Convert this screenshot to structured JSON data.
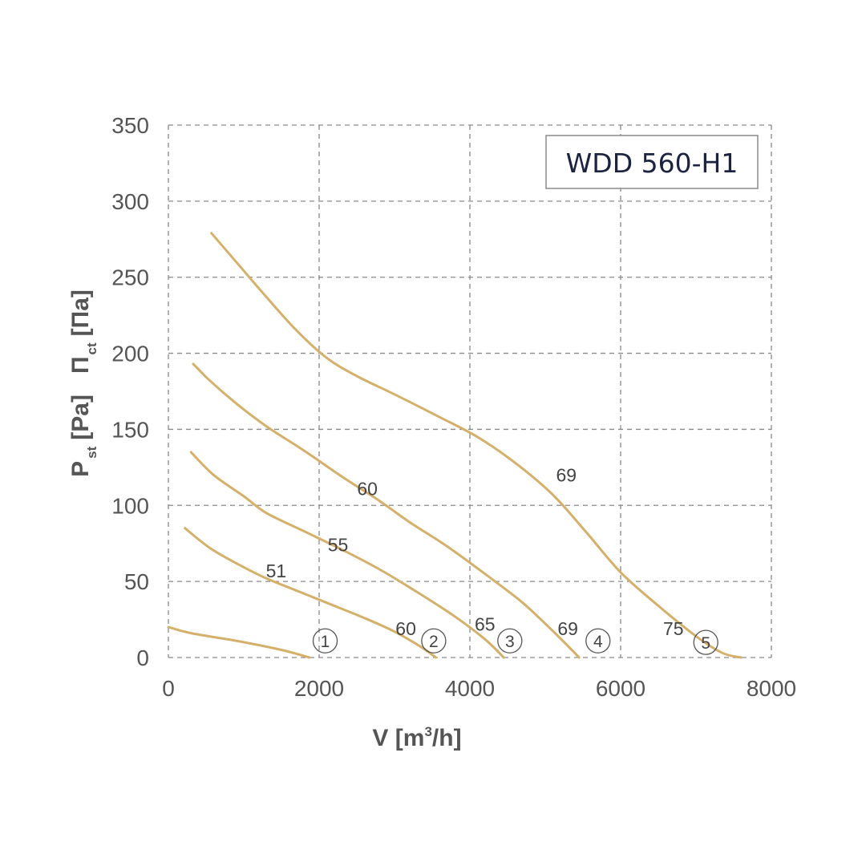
{
  "chart_data": {
    "type": "line",
    "title": "WDD 560-H1",
    "xlabel": {
      "main": "V [m",
      "sup": "3",
      "end": "/h]"
    },
    "ylabel": {
      "p1": "P",
      "p1_sub": "st",
      "p1_unit": "[Pa]",
      "p2": "П",
      "p2_sub": "ct",
      "p2_unit": "[Па]"
    },
    "xlim": [
      0,
      8000
    ],
    "ylim": [
      0,
      350
    ],
    "xticks": [
      0,
      2000,
      4000,
      6000,
      8000
    ],
    "yticks": [
      0,
      50,
      100,
      150,
      200,
      250,
      300,
      350
    ],
    "xtick_labels": [
      "0",
      "2000",
      "4000",
      "6000",
      "8000"
    ],
    "ytick_labels": [
      "0",
      "50",
      "100",
      "150",
      "200",
      "250",
      "300",
      "350"
    ],
    "grid": true,
    "line_color": "#d4b06a",
    "series": [
      {
        "marker": "①",
        "values": [
          [
            0,
            20
          ],
          [
            300,
            16
          ],
          [
            900,
            11
          ],
          [
            1500,
            5
          ],
          [
            1870,
            0
          ]
        ]
      },
      {
        "marker": "②",
        "values": [
          [
            220,
            85
          ],
          [
            550,
            72
          ],
          [
            900,
            62
          ],
          [
            1300,
            52
          ],
          [
            1700,
            44
          ],
          [
            2100,
            36
          ],
          [
            2600,
            26
          ],
          [
            3000,
            17
          ],
          [
            3350,
            7
          ],
          [
            3550,
            0
          ]
        ]
      },
      {
        "marker": "③",
        "values": [
          [
            300,
            135
          ],
          [
            600,
            120
          ],
          [
            1000,
            106
          ],
          [
            1300,
            95
          ],
          [
            1800,
            83
          ],
          [
            2300,
            71
          ],
          [
            2800,
            58
          ],
          [
            3300,
            43
          ],
          [
            3800,
            27
          ],
          [
            4200,
            12
          ],
          [
            4450,
            0
          ]
        ]
      },
      {
        "marker": "④",
        "values": [
          [
            330,
            193
          ],
          [
            550,
            182
          ],
          [
            900,
            167
          ],
          [
            1300,
            152
          ],
          [
            1800,
            136
          ],
          [
            2300,
            119
          ],
          [
            2800,
            103
          ],
          [
            3200,
            89
          ],
          [
            3700,
            73
          ],
          [
            4200,
            55
          ],
          [
            4700,
            36
          ],
          [
            5150,
            15
          ],
          [
            5450,
            0
          ]
        ]
      },
      {
        "marker": "⑤",
        "values": [
          [
            570,
            279
          ],
          [
            900,
            260
          ],
          [
            1300,
            237
          ],
          [
            1700,
            215
          ],
          [
            2100,
            197
          ],
          [
            2500,
            185
          ],
          [
            3000,
            173
          ],
          [
            3600,
            158
          ],
          [
            4100,
            145
          ],
          [
            4600,
            128
          ],
          [
            5100,
            107
          ],
          [
            5550,
            82
          ],
          [
            6000,
            56
          ],
          [
            6500,
            34
          ],
          [
            7000,
            14
          ],
          [
            7350,
            3
          ],
          [
            7600,
            0
          ]
        ]
      }
    ],
    "annotations": [
      {
        "text": "51",
        "x": 1430,
        "y": 57
      },
      {
        "text": "55",
        "x": 2250,
        "y": 74
      },
      {
        "text": "60",
        "x": 2640,
        "y": 111
      },
      {
        "text": "69",
        "x": 5280,
        "y": 120
      },
      {
        "text": "60",
        "x": 3150,
        "y": 19
      },
      {
        "text": "65",
        "x": 4200,
        "y": 22
      },
      {
        "text": "69",
        "x": 5300,
        "y": 19
      },
      {
        "text": "75",
        "x": 6700,
        "y": 19
      }
    ],
    "markers": [
      {
        "text": "1",
        "x": 2080,
        "y": 12
      },
      {
        "text": "2",
        "x": 3520,
        "y": 12
      },
      {
        "text": "3",
        "x": 4530,
        "y": 12
      },
      {
        "text": "4",
        "x": 5700,
        "y": 12
      },
      {
        "text": "5",
        "x": 7130,
        "y": 11
      }
    ]
  }
}
